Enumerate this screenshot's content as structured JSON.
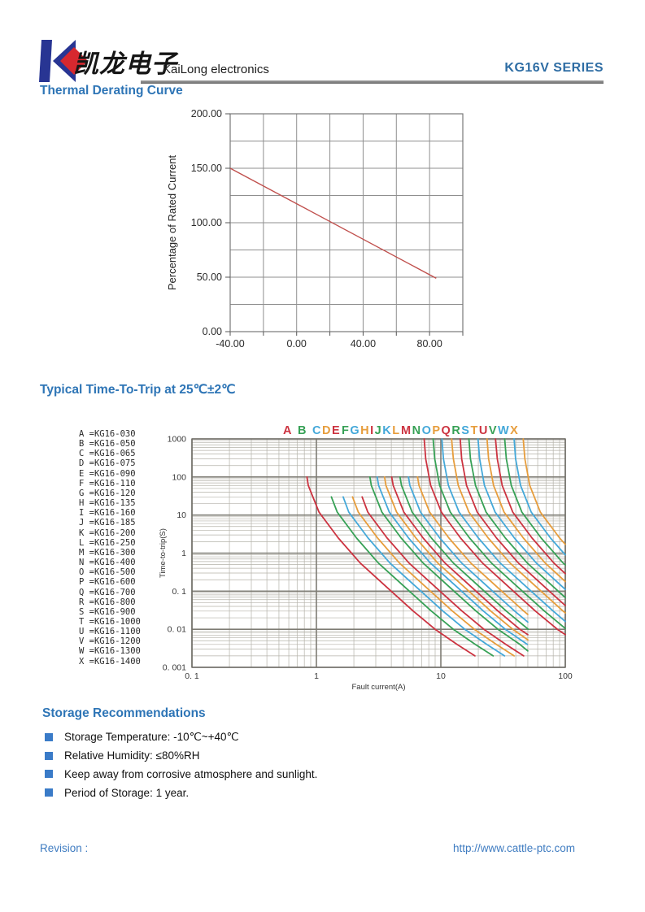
{
  "header": {
    "logo_chinese": "凯龙电子",
    "company": "KaiLong electronics",
    "series": "KG16V SERIES"
  },
  "colors": {
    "heading_blue": "#2e75b6",
    "series_blue": "#2e6da4",
    "footer_blue": "#3f7cc1",
    "bullet_blue": "#3a7bc8",
    "logo_blue": "#283593",
    "logo_red": "#d7282f",
    "divider_gray": "#7d7d7d"
  },
  "sections": {
    "derating_title": "Thermal Derating Curve",
    "trip_title": "Typical Time-To-Trip at 25℃±2℃",
    "storage_title": "Storage Recommendations",
    "storage_items": [
      "Storage Temperature: -10℃~+40℃",
      "Relative Humidity: ≤80%RH",
      "Keep away from corrosive atmosphere and sunlight.",
      "Period of Storage: 1 year."
    ]
  },
  "footer": {
    "revision": "Revision :",
    "url": "http://www.cattle-ptc.com"
  },
  "chart_data": [
    {
      "type": "line",
      "title": "Thermal Derating Curve",
      "xlabel": "",
      "ylabel": "Percentage of Rated Current",
      "xlim": [
        -40,
        100
      ],
      "ylim": [
        0,
        200
      ],
      "x_grid_step": 20,
      "y_grid_step": 25,
      "grid": true,
      "x_ticks": [
        {
          "v": -40,
          "t": "-40.00"
        },
        {
          "v": 0,
          "t": "0.00"
        },
        {
          "v": 40,
          "t": "40.00"
        },
        {
          "v": 80,
          "t": "80.00"
        }
      ],
      "y_ticks": [
        {
          "v": 0,
          "t": "0.00"
        },
        {
          "v": 50,
          "t": "50.00"
        },
        {
          "v": 100,
          "t": "100.00"
        },
        {
          "v": 150,
          "t": "150.00"
        },
        {
          "v": 200,
          "t": "200.00"
        }
      ],
      "line_color": "#c0504d",
      "series": [
        {
          "name": "derating-line",
          "points": [
            [
              -40,
              150
            ],
            [
              84,
              49
            ]
          ]
        }
      ]
    },
    {
      "type": "line",
      "title": "Typical Time-To-Trip at 25℃±2℃",
      "x_scale": "log",
      "y_scale": "log",
      "xlabel": "Fault current(A)",
      "ylabel": "Time-to-trip(S)",
      "xlim": [
        0.1,
        100
      ],
      "ylim": [
        0.001,
        1000
      ],
      "x_ticks": [
        {
          "v": 0.1,
          "t": "0. 1"
        },
        {
          "v": 1,
          "t": "1"
        },
        {
          "v": 10,
          "t": "10"
        },
        {
          "v": 100,
          "t": "100"
        }
      ],
      "y_ticks": [
        {
          "v": 1000,
          "t": "1000"
        },
        {
          "v": 100,
          "t": "100"
        },
        {
          "v": 10,
          "t": "10"
        },
        {
          "v": 1,
          "t": "1"
        },
        {
          "v": 0.1,
          "t": "0. 1"
        },
        {
          "v": 0.01,
          "t": "0. 01"
        },
        {
          "v": 0.001,
          "t": "0. 001"
        }
      ],
      "color_cycle": [
        "#cc3340",
        "#37a156",
        "#44a8d9",
        "#e79d3c"
      ],
      "header_letter_groups": [
        "A B CDE",
        "FGHIJKL",
        "MNOPQRSTUVWX"
      ],
      "series": [
        {
          "letter": "A",
          "label": "KG16-030",
          "points": [
            [
              0.84,
              100
            ],
            [
              0.86,
              60
            ],
            [
              1.05,
              12
            ],
            [
              1.5,
              2.5
            ],
            [
              2.25,
              0.55
            ],
            [
              3.75,
              0.12
            ],
            [
              6,
              0.03
            ],
            [
              9,
              0.01
            ],
            [
              13.5,
              0.004
            ],
            [
              18.8,
              0.002
            ]
          ]
        },
        {
          "letter": "B",
          "label": "KG16-050",
          "points": [
            [
              1.32,
              30
            ],
            [
              1.47,
              12
            ],
            [
              2.1,
              2.5
            ],
            [
              3.15,
              0.55
            ],
            [
              5.25,
              0.12
            ],
            [
              8.4,
              0.03
            ],
            [
              12.6,
              0.01
            ],
            [
              18.9,
              0.004
            ],
            [
              26.3,
              0.002
            ]
          ]
        },
        {
          "letter": "C",
          "label": "KG16-065",
          "points": [
            [
              1.64,
              30
            ],
            [
              1.82,
              12
            ],
            [
              2.6,
              2.5
            ],
            [
              3.9,
              0.55
            ],
            [
              6.5,
              0.12
            ],
            [
              10.4,
              0.03
            ],
            [
              15.6,
              0.01
            ],
            [
              23.4,
              0.004
            ],
            [
              32.5,
              0.002
            ]
          ]
        },
        {
          "letter": "D",
          "label": "KG16-075",
          "points": [
            [
              1.95,
              30
            ],
            [
              2.17,
              12
            ],
            [
              3.1,
              2.5
            ],
            [
              4.65,
              0.55
            ],
            [
              7.75,
              0.12
            ],
            [
              12.4,
              0.03
            ],
            [
              18.6,
              0.01
            ],
            [
              27.9,
              0.004
            ],
            [
              38.8,
              0.002
            ]
          ]
        },
        {
          "letter": "E",
          "label": "KG16-090",
          "points": [
            [
              2.33,
              30
            ],
            [
              2.59,
              12
            ],
            [
              3.7,
              2.5
            ],
            [
              5.55,
              0.55
            ],
            [
              9.25,
              0.12
            ],
            [
              14.8,
              0.03
            ],
            [
              22.2,
              0.01
            ],
            [
              33.3,
              0.004
            ],
            [
              46.3,
              0.002
            ]
          ]
        },
        {
          "letter": "F",
          "label": "KG16-110",
          "points": [
            [
              2.69,
              100
            ],
            [
              2.76,
              60
            ],
            [
              3.36,
              12
            ],
            [
              4.8,
              2.5
            ],
            [
              7.2,
              0.55
            ],
            [
              12,
              0.12
            ],
            [
              19.2,
              0.03
            ],
            [
              28.8,
              0.01
            ],
            [
              43.2,
              0.004
            ],
            [
              50,
              0.0027
            ]
          ]
        },
        {
          "letter": "G",
          "label": "KG16-120",
          "points": [
            [
              3.08,
              100
            ],
            [
              3.16,
              60
            ],
            [
              3.85,
              12
            ],
            [
              5.5,
              2.5
            ],
            [
              8.25,
              0.55
            ],
            [
              13.8,
              0.12
            ],
            [
              22,
              0.03
            ],
            [
              33,
              0.01
            ],
            [
              49.5,
              0.004
            ]
          ]
        },
        {
          "letter": "H",
          "label": "KG16-135",
          "points": [
            [
              3.53,
              100
            ],
            [
              3.62,
              60
            ],
            [
              4.41,
              12
            ],
            [
              6.3,
              2.5
            ],
            [
              9.45,
              0.55
            ],
            [
              15.8,
              0.12
            ],
            [
              25.2,
              0.03
            ],
            [
              37.8,
              0.01
            ],
            [
              50,
              0.0053
            ]
          ]
        },
        {
          "letter": "I",
          "label": "KG16-160",
          "points": [
            [
              4.03,
              100
            ],
            [
              4.14,
              60
            ],
            [
              5.04,
              12
            ],
            [
              7.2,
              2.5
            ],
            [
              10.8,
              0.55
            ],
            [
              18,
              0.12
            ],
            [
              28.8,
              0.03
            ],
            [
              43.2,
              0.01
            ],
            [
              50,
              0.0072
            ]
          ]
        },
        {
          "letter": "J",
          "label": "KG16-185",
          "points": [
            [
              4.7,
              100
            ],
            [
              4.83,
              60
            ],
            [
              5.88,
              12
            ],
            [
              8.4,
              2.5
            ],
            [
              12.6,
              0.55
            ],
            [
              21,
              0.12
            ],
            [
              33.6,
              0.03
            ],
            [
              50.4,
              0.01
            ]
          ]
        },
        {
          "letter": "K",
          "label": "KG16-200",
          "points": [
            [
              5.49,
              100
            ],
            [
              5.64,
              60
            ],
            [
              6.86,
              12
            ],
            [
              9.8,
              2.5
            ],
            [
              14.7,
              0.55
            ],
            [
              24.5,
              0.12
            ],
            [
              39.2,
              0.03
            ],
            [
              50,
              0.0155
            ]
          ]
        },
        {
          "letter": "L",
          "label": "KG16-250",
          "points": [
            [
              6.5,
              100
            ],
            [
              6.67,
              60
            ],
            [
              8.12,
              12
            ],
            [
              11.6,
              2.5
            ],
            [
              17.4,
              0.55
            ],
            [
              29,
              0.12
            ],
            [
              46.4,
              0.03
            ],
            [
              50,
              0.0245
            ]
          ]
        },
        {
          "letter": "M",
          "label": "KG16-300",
          "points": [
            [
              7.34,
              1000
            ],
            [
              7.56,
              300
            ],
            [
              8.28,
              60
            ],
            [
              10.1,
              12
            ],
            [
              14.4,
              2.5
            ],
            [
              21.6,
              0.55
            ],
            [
              36,
              0.12
            ],
            [
              57.6,
              0.03
            ],
            [
              86.4,
              0.01
            ],
            [
              100,
              0.0072
            ]
          ]
        },
        {
          "letter": "N",
          "label": "KG16-400",
          "points": [
            [
              8.67,
              1000
            ],
            [
              8.93,
              300
            ],
            [
              9.78,
              60
            ],
            [
              11.9,
              12
            ],
            [
              17,
              2.5
            ],
            [
              25.5,
              0.55
            ],
            [
              42.5,
              0.12
            ],
            [
              68,
              0.03
            ],
            [
              100,
              0.0105
            ]
          ]
        },
        {
          "letter": "O",
          "label": "KG16-500",
          "points": [
            [
              10.2,
              1000
            ],
            [
              10.5,
              300
            ],
            [
              11.5,
              60
            ],
            [
              14,
              12
            ],
            [
              20,
              2.5
            ],
            [
              30,
              0.55
            ],
            [
              50,
              0.12
            ],
            [
              80,
              0.03
            ],
            [
              100,
              0.016
            ]
          ]
        },
        {
          "letter": "P",
          "label": "KG16-600",
          "points": [
            [
              12.2,
              1000
            ],
            [
              12.6,
              300
            ],
            [
              13.8,
              60
            ],
            [
              16.8,
              12
            ],
            [
              24,
              2.5
            ],
            [
              36,
              0.55
            ],
            [
              60,
              0.12
            ],
            [
              96,
              0.03
            ],
            [
              100,
              0.027
            ]
          ]
        },
        {
          "letter": "Q",
          "label": "KG16-700",
          "points": [
            [
              14.3,
              1000
            ],
            [
              14.7,
              300
            ],
            [
              16.1,
              60
            ],
            [
              19.6,
              12
            ],
            [
              28,
              2.5
            ],
            [
              42,
              0.55
            ],
            [
              70,
              0.12
            ],
            [
              100,
              0.042
            ]
          ]
        },
        {
          "letter": "R",
          "label": "KG16-800",
          "points": [
            [
              16.8,
              1000
            ],
            [
              17.3,
              300
            ],
            [
              19,
              60
            ],
            [
              23.1,
              12
            ],
            [
              33,
              2.5
            ],
            [
              49.5,
              0.55
            ],
            [
              82.5,
              0.12
            ],
            [
              100,
              0.068
            ]
          ]
        },
        {
          "letter": "S",
          "label": "KG16-900",
          "points": [
            [
              19.9,
              1000
            ],
            [
              20.5,
              300
            ],
            [
              22.4,
              60
            ],
            [
              27.3,
              12
            ],
            [
              39,
              2.5
            ],
            [
              58.5,
              0.55
            ],
            [
              97.5,
              0.12
            ],
            [
              100,
              0.111
            ]
          ]
        },
        {
          "letter": "T",
          "label": "KG16-1000",
          "points": [
            [
              23.5,
              1000
            ],
            [
              24.2,
              300
            ],
            [
              26.5,
              60
            ],
            [
              32.2,
              12
            ],
            [
              46,
              2.5
            ],
            [
              69,
              0.55
            ],
            [
              100,
              0.18
            ]
          ]
        },
        {
          "letter": "U",
          "label": "KG16-1100",
          "points": [
            [
              27.5,
              1000
            ],
            [
              28.4,
              300
            ],
            [
              31.1,
              60
            ],
            [
              37.8,
              12
            ],
            [
              54,
              2.5
            ],
            [
              81,
              0.55
            ],
            [
              100,
              0.29
            ]
          ]
        },
        {
          "letter": "V",
          "label": "KG16-1200",
          "points": [
            [
              32.6,
              1000
            ],
            [
              33.6,
              300
            ],
            [
              36.8,
              60
            ],
            [
              44.8,
              12
            ],
            [
              64,
              2.5
            ],
            [
              96,
              0.55
            ],
            [
              100,
              0.49
            ]
          ]
        },
        {
          "letter": "W",
          "label": "KG16-1300",
          "points": [
            [
              38.8,
              1000
            ],
            [
              39.9,
              300
            ],
            [
              43.7,
              60
            ],
            [
              53.2,
              12
            ],
            [
              76,
              2.5
            ],
            [
              100,
              0.9
            ]
          ]
        },
        {
          "letter": "X",
          "label": "KG16-1400",
          "points": [
            [
              45.9,
              1000
            ],
            [
              47.3,
              300
            ],
            [
              51.8,
              60
            ],
            [
              63,
              12
            ],
            [
              90,
              2.5
            ],
            [
              100,
              1.7
            ]
          ]
        }
      ]
    }
  ]
}
